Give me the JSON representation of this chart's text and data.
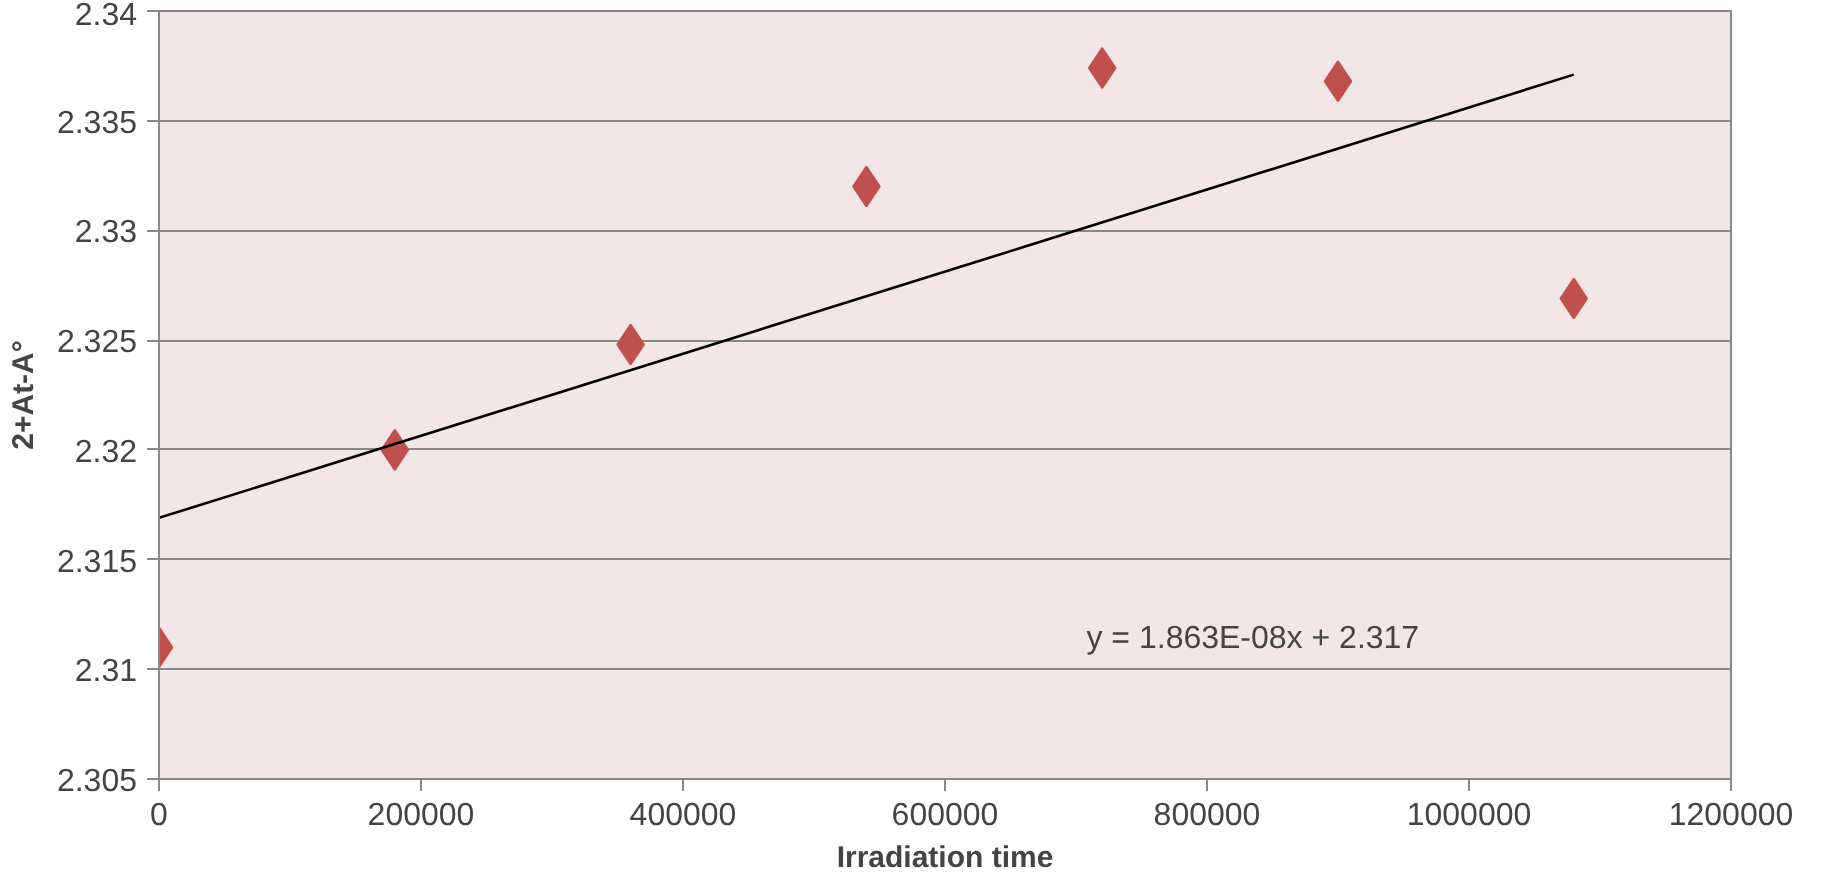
{
  "chart_data": {
    "type": "scatter",
    "xlabel": "Irradiation time",
    "ylabel": "2+At-A°",
    "x": [
      0,
      180000,
      360000,
      540000,
      720000,
      900000,
      1080000
    ],
    "series": [
      {
        "color": "#c0504d",
        "marker": "diamond",
        "values": [
          2.311,
          2.32,
          2.3248,
          2.332,
          2.3374,
          2.3368,
          2.3269
        ]
      },
      {
        "type": "line",
        "color": "#000000",
        "x": [
          0,
          1080000
        ],
        "values": [
          2.3169,
          2.3371
        ]
      }
    ],
    "annotations": [
      "y = 1.863E-08x + 2.317"
    ],
    "xlim": [
      0,
      1200000
    ],
    "xticks": [
      0,
      200000,
      400000,
      600000,
      800000,
      1000000,
      1200000
    ],
    "ylim": [
      2.305,
      2.34
    ],
    "yticks": [
      2.305,
      2.31,
      2.315,
      2.32,
      2.325,
      2.33,
      2.335,
      2.34
    ],
    "grid": "y"
  }
}
